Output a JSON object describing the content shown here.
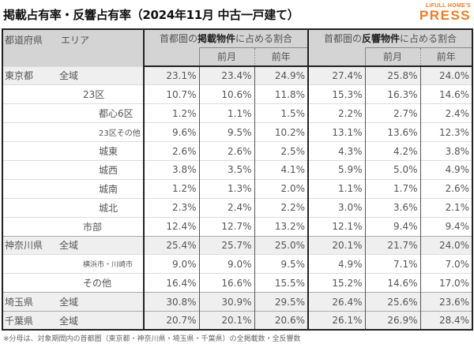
{
  "title": "掲載占有率・反響占有率（2024年11月 中古一戸建て）",
  "logo": {
    "small": "LIFULL HOME'S",
    "big": "PRESS",
    "color": "#f07b22"
  },
  "header": {
    "pref": "都道府県",
    "area": "エリア",
    "group1": {
      "pre": "首都圏の",
      "bold": "掲載物件",
      "post": "に占める割合"
    },
    "group2": {
      "pre": "首都圏の",
      "bold": "反響物件",
      "post": "に占める割合"
    },
    "prev_month": "前月",
    "prev_year": "前年"
  },
  "rows": [
    {
      "pref": "東京都",
      "area": "全域",
      "values": [
        "23.1%",
        "23.4%",
        "24.9%",
        "27.4%",
        "25.8%",
        "24.0%"
      ]
    },
    {
      "pref": "",
      "area": "23区",
      "values": [
        "10.7%",
        "10.6%",
        "11.8%",
        "15.3%",
        "16.3%",
        "14.6%"
      ]
    },
    {
      "pref": "",
      "area": "都心6区",
      "values": [
        "1.2%",
        "1.1%",
        "1.5%",
        "2.2%",
        "2.7%",
        "2.4%"
      ]
    },
    {
      "pref": "",
      "area": "23区その他",
      "values": [
        "9.6%",
        "9.5%",
        "10.2%",
        "13.1%",
        "13.6%",
        "12.3%"
      ]
    },
    {
      "pref": "",
      "area": "城東",
      "values": [
        "2.6%",
        "2.6%",
        "2.5%",
        "4.3%",
        "4.2%",
        "3.8%"
      ]
    },
    {
      "pref": "",
      "area": "城西",
      "values": [
        "3.8%",
        "3.5%",
        "4.1%",
        "5.9%",
        "5.0%",
        "4.9%"
      ]
    },
    {
      "pref": "",
      "area": "城南",
      "values": [
        "1.2%",
        "1.3%",
        "2.0%",
        "1.1%",
        "1.7%",
        "2.6%"
      ]
    },
    {
      "pref": "",
      "area": "城北",
      "values": [
        "2.3%",
        "2.4%",
        "2.2%",
        "3.0%",
        "3.6%",
        "2.1%"
      ]
    },
    {
      "pref": "",
      "area": "市部",
      "values": [
        "12.4%",
        "12.7%",
        "13.2%",
        "12.1%",
        "9.4%",
        "9.4%"
      ]
    },
    {
      "pref": "神奈川県",
      "area": "全域",
      "values": [
        "25.4%",
        "25.7%",
        "25.0%",
        "20.1%",
        "21.7%",
        "24.0%"
      ]
    },
    {
      "pref": "",
      "area": "横浜市・川崎市",
      "values": [
        "9.0%",
        "9.0%",
        "9.5%",
        "4.9%",
        "7.1%",
        "7.0%"
      ]
    },
    {
      "pref": "",
      "area": "その他",
      "values": [
        "16.4%",
        "16.6%",
        "15.5%",
        "15.2%",
        "14.6%",
        "17.0%"
      ]
    },
    {
      "pref": "埼玉県",
      "area": "全域",
      "values": [
        "30.8%",
        "30.9%",
        "29.5%",
        "26.4%",
        "25.6%",
        "23.6%"
      ]
    },
    {
      "pref": "千葉県",
      "area": "全域",
      "values": [
        "20.7%",
        "20.1%",
        "20.6%",
        "26.1%",
        "26.9%",
        "28.4%"
      ]
    }
  ],
  "note": "※分母は、対象期間内の首都圏（東京都・神奈川県・埼玉県・千葉県）の全掲載数・全反響数"
}
